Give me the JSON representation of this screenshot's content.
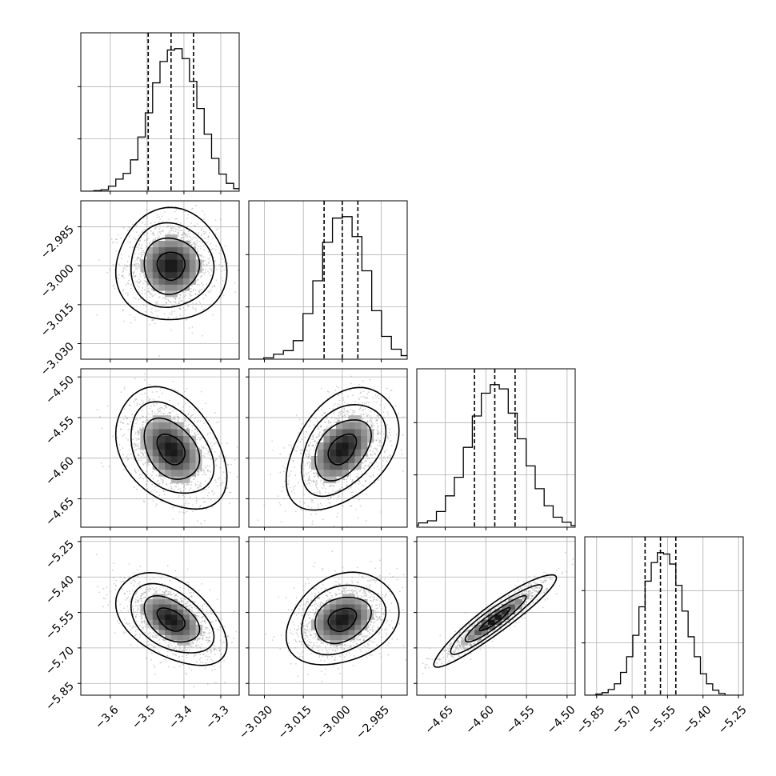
{
  "chart_data": {
    "type": "corner",
    "n_params": 4,
    "params": [
      {
        "range": [
          -3.68,
          -3.25
        ],
        "ticks": [
          -3.6,
          -3.5,
          -3.4,
          -3.3
        ],
        "tick_labels": [
          "−3.6",
          "−3.5",
          "−3.4",
          "−3.3"
        ],
        "mean": -3.435,
        "sigma": 0.05,
        "quantiles": [
          -3.497,
          -3.435,
          -3.374
        ],
        "hist": [
          0.004,
          0.01,
          0.035,
          0.085,
          0.125,
          0.22,
          0.38,
          0.55,
          0.76,
          0.91,
          0.99,
          1.0,
          0.93,
          0.77,
          0.58,
          0.4,
          0.23,
          0.12,
          0.055,
          0.018,
          0.006
        ]
      },
      {
        "range": [
          -3.036,
          -2.975
        ],
        "ticks": [
          -3.03,
          -3.015,
          -3.0,
          -2.985
        ],
        "tick_labels": [
          "−3.030",
          "−3.015",
          "−3.000",
          "−2.985"
        ],
        "mean": -3.0,
        "sigma": 0.0072,
        "quantiles": [
          -3.007,
          -3.0,
          -2.994
        ],
        "hist": [
          0.01,
          0.035,
          0.06,
          0.13,
          0.32,
          0.55,
          0.82,
          0.99,
          1.0,
          0.86,
          0.62,
          0.34,
          0.16,
          0.07,
          0.025,
          0.01
        ]
      },
      {
        "range": [
          -4.685,
          -4.49
        ],
        "ticks": [
          -4.65,
          -4.6,
          -4.55,
          -4.5
        ],
        "tick_labels": [
          "−4.65",
          "−4.60",
          "−4.55",
          "−4.50"
        ],
        "mean": -4.589,
        "sigma": 0.025,
        "quantiles": [
          -4.614,
          -4.589,
          -4.564
        ],
        "hist": [
          0.012,
          0.03,
          0.045,
          0.11,
          0.22,
          0.35,
          0.56,
          0.78,
          0.94,
          1.0,
          0.97,
          0.8,
          0.62,
          0.43,
          0.27,
          0.15,
          0.07,
          0.035,
          0.012
        ]
      },
      {
        "range": [
          -5.9,
          -5.23
        ],
        "ticks": [
          -5.85,
          -5.7,
          -5.55,
          -5.4,
          -5.25
        ],
        "tick_labels": [
          "−5.85",
          "−5.70",
          "−5.55",
          "−5.40",
          "−5.25"
        ],
        "mean": -5.58,
        "sigma": 0.065,
        "quantiles": [
          -5.645,
          -5.58,
          -5.515
        ],
        "hist": [
          0.008,
          0.018,
          0.04,
          0.08,
          0.16,
          0.27,
          0.42,
          0.62,
          0.8,
          0.93,
          1.0,
          0.99,
          0.92,
          0.77,
          0.59,
          0.41,
          0.27,
          0.15,
          0.08,
          0.035,
          0.012
        ]
      }
    ],
    "correlations": [
      [
        1.0,
        0.0,
        -0.35,
        -0.45
      ],
      [
        0.0,
        1.0,
        0.4,
        0.25
      ],
      [
        -0.35,
        0.4,
        1.0,
        0.93
      ],
      [
        -0.45,
        0.25,
        0.93,
        1.0
      ]
    ],
    "contour_levels_sigma": [
      0.5,
      1.0,
      1.5,
      2.0
    ],
    "grid": true,
    "quantile_line_style": "dashed",
    "colors": {
      "line": "#000000",
      "grid": "#b0b0b0",
      "points": "#9a9a9a"
    }
  }
}
